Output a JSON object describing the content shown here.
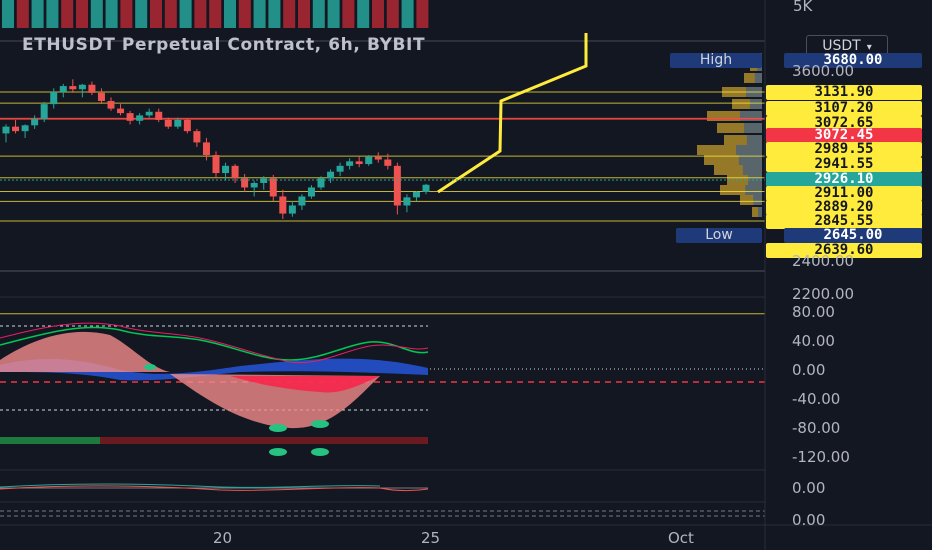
{
  "chart_data": {
    "type": "candlestick",
    "title": "ETHUSDT Perpetual Contract, 6h, BYBIT",
    "currency": "USDT",
    "volume_axis_label": "5K",
    "price_axis": {
      "ticks": [
        "3600.00",
        "2400.00",
        "2200.00"
      ]
    },
    "oscillator_axis": {
      "ticks": [
        "80.00",
        "40.00",
        "0.00",
        "-40.00",
        "-80.00",
        "-120.00"
      ]
    },
    "lower_axes": [
      "0.00",
      "0.00"
    ],
    "x_ticks": [
      "20",
      "25",
      "Oct"
    ],
    "high": {
      "label": "High",
      "value": "3680.00"
    },
    "low": {
      "label": "Low",
      "value": "2645.00"
    },
    "current_price": "2926.10",
    "price_levels": [
      {
        "value": "3131.90",
        "color": "#ffeb3b"
      },
      {
        "value": "3107.20",
        "color": "#ffeb3b"
      },
      {
        "value": "3072.65",
        "color": "#ffeb3b"
      },
      {
        "value": "3072.45",
        "color": "#f23645"
      },
      {
        "value": "2989.55",
        "color": "#ffeb3b"
      },
      {
        "value": "2941.55",
        "color": "#ffeb3b"
      },
      {
        "value": "2911.00",
        "color": "#ffeb3b"
      },
      {
        "value": "2889.20",
        "color": "#ffeb3b"
      },
      {
        "value": "2845.55",
        "color": "#ffeb3b"
      },
      {
        "value": "2639.60",
        "color": "#ffeb3b"
      }
    ],
    "candles": [
      [
        3040,
        3060,
        3020,
        3055
      ],
      [
        3055,
        3070,
        3040,
        3045
      ],
      [
        3045,
        3060,
        3030,
        3058
      ],
      [
        3058,
        3080,
        3050,
        3072
      ],
      [
        3072,
        3110,
        3065,
        3105
      ],
      [
        3105,
        3140,
        3095,
        3132
      ],
      [
        3132,
        3150,
        3120,
        3145
      ],
      [
        3145,
        3160,
        3130,
        3138
      ],
      [
        3138,
        3150,
        3120,
        3148
      ],
      [
        3148,
        3155,
        3125,
        3130
      ],
      [
        3130,
        3140,
        3105,
        3112
      ],
      [
        3112,
        3120,
        3090,
        3095
      ],
      [
        3095,
        3105,
        3080,
        3085
      ],
      [
        3085,
        3090,
        3060,
        3068
      ],
      [
        3068,
        3085,
        3060,
        3080
      ],
      [
        3080,
        3095,
        3075,
        3088
      ],
      [
        3088,
        3095,
        3065,
        3070
      ],
      [
        3070,
        3075,
        3050,
        3055
      ],
      [
        3055,
        3075,
        3050,
        3070
      ],
      [
        3070,
        3072,
        3040,
        3045
      ],
      [
        3045,
        3050,
        3010,
        3020
      ],
      [
        3020,
        3030,
        2980,
        2992
      ],
      [
        2992,
        3000,
        2940,
        2952
      ],
      [
        2952,
        2975,
        2935,
        2968
      ],
      [
        2968,
        2972,
        2930,
        2940
      ],
      [
        2940,
        2950,
        2910,
        2920
      ],
      [
        2920,
        2935,
        2900,
        2930
      ],
      [
        2930,
        2945,
        2915,
        2940
      ],
      [
        2940,
        2948,
        2890,
        2900
      ],
      [
        2900,
        2915,
        2850,
        2862
      ],
      [
        2862,
        2890,
        2855,
        2880
      ],
      [
        2880,
        2905,
        2870,
        2900
      ],
      [
        2900,
        2925,
        2895,
        2920
      ],
      [
        2920,
        2945,
        2915,
        2940
      ],
      [
        2940,
        2960,
        2930,
        2955
      ],
      [
        2955,
        2975,
        2945,
        2968
      ],
      [
        2968,
        2985,
        2960,
        2978
      ],
      [
        2978,
        2990,
        2965,
        2972
      ],
      [
        2972,
        2992,
        2968,
        2988
      ],
      [
        2988,
        2998,
        2975,
        2982
      ],
      [
        2982,
        2995,
        2960,
        2968
      ],
      [
        2968,
        2975,
        2860,
        2880
      ],
      [
        2880,
        2905,
        2865,
        2898
      ],
      [
        2898,
        2912,
        2890,
        2910
      ],
      [
        2910,
        2928,
        2905,
        2926
      ]
    ]
  }
}
